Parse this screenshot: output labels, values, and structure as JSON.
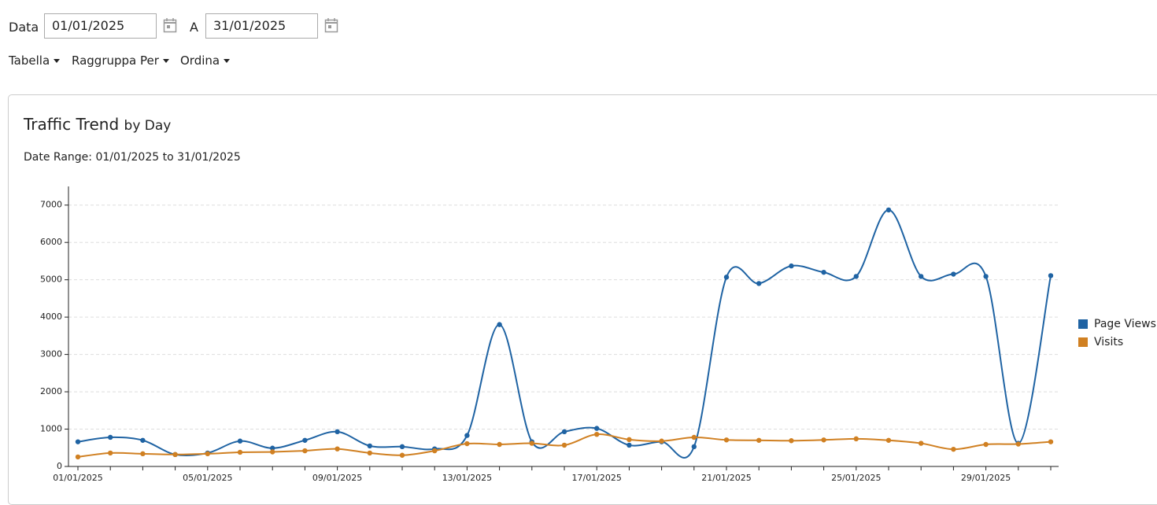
{
  "filters": {
    "from_label": "Data",
    "from": "01/01/2025",
    "to_label": "A",
    "to": "31/01/2025"
  },
  "menus": [
    "Tabella",
    "Raggruppa Per",
    "Ordina"
  ],
  "chart_data": {
    "type": "line",
    "title": "Traffic Trend",
    "subtitle": "by Day",
    "date_range": "Date Range: 01/01/2025 to 31/01/2025",
    "categories": [
      "01/01/2025",
      null,
      null,
      null,
      "05/01/2025",
      null,
      null,
      null,
      "09/01/2025",
      null,
      null,
      null,
      "13/01/2025",
      null,
      null,
      null,
      "17/01/2025",
      null,
      null,
      null,
      "21/01/2025",
      null,
      null,
      null,
      "25/01/2025",
      null,
      null,
      null,
      "29/01/2025",
      null,
      null
    ],
    "series": [
      {
        "name": "Page Views",
        "color": "#1f63a3",
        "values": [
          660,
          780,
          700,
          320,
          360,
          680,
          490,
          700,
          930,
          550,
          530,
          470,
          830,
          3800,
          660,
          930,
          1020,
          570,
          660,
          530,
          5070,
          4900,
          5370,
          5200,
          5090,
          6870,
          5090,
          5150,
          5090,
          620,
          5110
        ]
      },
      {
        "name": "Visits",
        "color": "#d08022",
        "values": [
          255,
          360,
          340,
          320,
          340,
          380,
          390,
          420,
          470,
          360,
          300,
          420,
          610,
          590,
          620,
          570,
          860,
          720,
          680,
          780,
          710,
          700,
          690,
          710,
          740,
          700,
          620,
          460,
          590,
          600,
          660
        ]
      }
    ],
    "ylim": [
      0,
      7500
    ],
    "yticks": [
      0,
      1000,
      2000,
      3000,
      4000,
      5000,
      6000,
      7000
    ],
    "grid": true,
    "legend": "right"
  }
}
